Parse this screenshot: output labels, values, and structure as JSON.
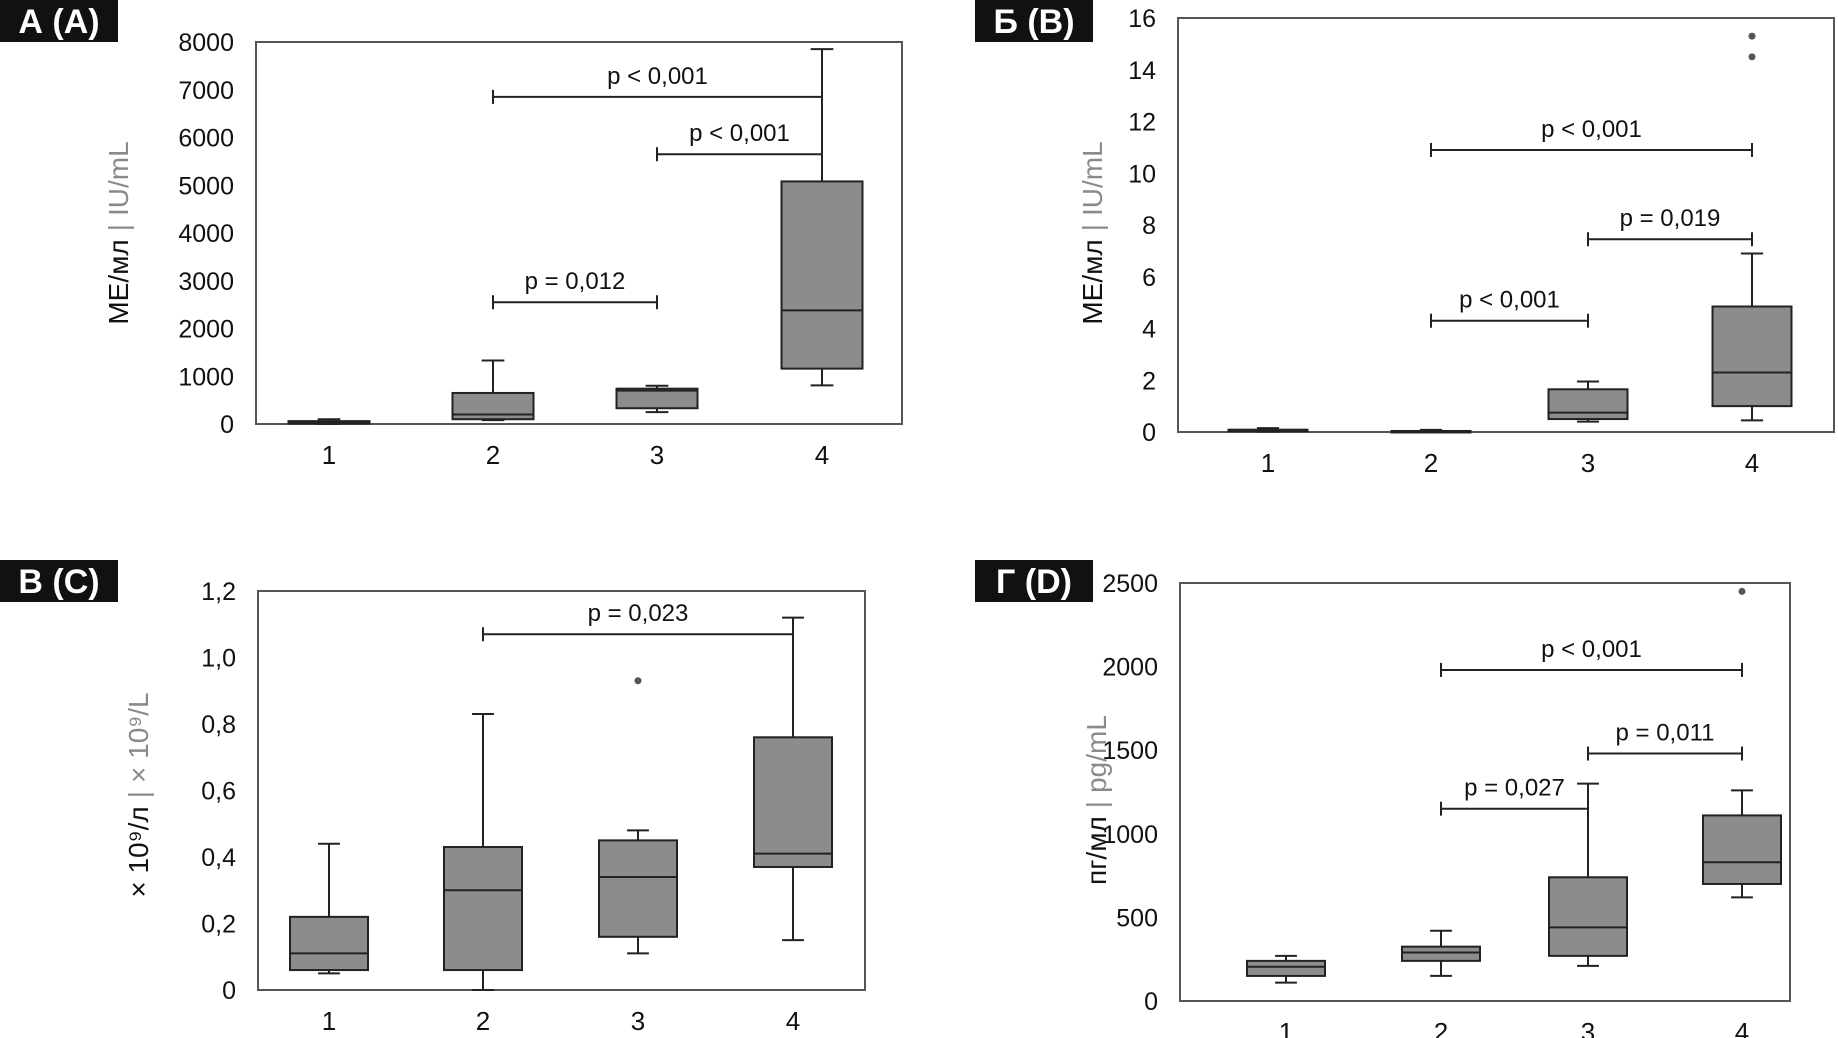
{
  "chart_data": [
    {
      "type": "box",
      "panel_label": "А (A)",
      "ylabel_ru": "МЕ/мл",
      "ylabel_sep": "|",
      "ylabel_en": "IU/mL",
      "ylim": [
        0,
        8000
      ],
      "yticks": [
        0,
        1000,
        2000,
        3000,
        4000,
        5000,
        6000,
        7000,
        8000
      ],
      "ytick_labels": [
        "0",
        "1000",
        "2000",
        "3000",
        "4000",
        "5000",
        "6000",
        "7000",
        "8000"
      ],
      "categories": [
        "1",
        "2",
        "3",
        "4"
      ],
      "boxes": [
        {
          "min": 0,
          "q1": 10,
          "median": 30,
          "q3": 60,
          "max": 100
        },
        {
          "min": 80,
          "q1": 100,
          "median": 200,
          "q3": 650,
          "max": 1330
        },
        {
          "min": 250,
          "q1": 330,
          "median": 700,
          "q3": 740,
          "max": 800
        },
        {
          "min": 810,
          "q1": 1160,
          "median": 2380,
          "q3": 5080,
          "max": 7850
        }
      ],
      "outliers": [
        [],
        [],
        [],
        []
      ],
      "comparisons": [
        {
          "from": "2",
          "to": "4",
          "y": 6850,
          "label": "p < 0,001"
        },
        {
          "from": "3",
          "to": "4",
          "y": 5650,
          "label": "p < 0,001"
        },
        {
          "from": "2",
          "to": "3",
          "y": 2550,
          "label": "p = 0,012"
        }
      ]
    },
    {
      "type": "box",
      "panel_label": "Б (B)",
      "ylabel_ru": "МЕ/мл",
      "ylabel_sep": "|",
      "ylabel_en": "IU/mL",
      "ylim": [
        0,
        16
      ],
      "yticks": [
        0,
        2,
        4,
        6,
        8,
        10,
        12,
        14,
        16
      ],
      "ytick_labels": [
        "0",
        "2",
        "4",
        "6",
        "8",
        "10",
        "12",
        "14",
        "16"
      ],
      "categories": [
        "1",
        "2",
        "3",
        "4"
      ],
      "boxes": [
        {
          "min": 0.02,
          "q1": 0.04,
          "median": 0.07,
          "q3": 0.09,
          "max": 0.15
        },
        {
          "min": 0.01,
          "q1": 0.02,
          "median": 0.03,
          "q3": 0.04,
          "max": 0.08
        },
        {
          "min": 0.4,
          "q1": 0.5,
          "median": 0.75,
          "q3": 1.65,
          "max": 1.95
        },
        {
          "min": 0.45,
          "q1": 1.0,
          "median": 2.3,
          "q3": 4.85,
          "max": 6.9
        }
      ],
      "outliers": [
        [],
        [],
        [],
        [
          14.5,
          15.3
        ]
      ],
      "comparisons": [
        {
          "from": "2",
          "to": "4",
          "y": 10.9,
          "label": "p < 0,001"
        },
        {
          "from": "3",
          "to": "4",
          "y": 7.45,
          "label": "p = 0,019"
        },
        {
          "from": "2",
          "to": "3",
          "y": 4.3,
          "label": "p < 0,001"
        }
      ]
    },
    {
      "type": "box",
      "panel_label": "В (C)",
      "ylabel_ru": "× 10⁹/л",
      "ylabel_sep": "|",
      "ylabel_en": "× 10⁹/L",
      "ylim": [
        0,
        1.2
      ],
      "yticks": [
        0,
        0.2,
        0.4,
        0.6,
        0.8,
        1.0,
        1.2
      ],
      "ytick_labels": [
        "0",
        "0,2",
        "0,4",
        "0,6",
        "0,8",
        "1,0",
        "1,2"
      ],
      "categories": [
        "1",
        "2",
        "3",
        "4"
      ],
      "boxes": [
        {
          "min": 0.05,
          "q1": 0.06,
          "median": 0.11,
          "q3": 0.22,
          "max": 0.44
        },
        {
          "min": 0.0,
          "q1": 0.06,
          "median": 0.3,
          "q3": 0.43,
          "max": 0.83
        },
        {
          "min": 0.11,
          "q1": 0.16,
          "median": 0.34,
          "q3": 0.45,
          "max": 0.48
        },
        {
          "min": 0.15,
          "q1": 0.37,
          "median": 0.41,
          "q3": 0.76,
          "max": 1.12
        }
      ],
      "outliers": [
        [],
        [],
        [
          0.93
        ],
        []
      ],
      "comparisons": [
        {
          "from": "2",
          "to": "4",
          "y": 1.07,
          "label": "p = 0,023"
        }
      ]
    },
    {
      "type": "box",
      "panel_label": "Г (D)",
      "ylabel_ru": "пг/мл",
      "ylabel_sep": "|",
      "ylabel_en": "pg/mL",
      "ylim": [
        0,
        2500
      ],
      "yticks": [
        0,
        500,
        1000,
        1500,
        2000,
        2500
      ],
      "ytick_labels": [
        "0",
        "500",
        "1000",
        "1500",
        "2000",
        "2500"
      ],
      "categories": [
        "1",
        "2",
        "3",
        "4"
      ],
      "boxes": [
        {
          "min": 110,
          "q1": 150,
          "median": 205,
          "q3": 240,
          "max": 270
        },
        {
          "min": 150,
          "q1": 240,
          "median": 290,
          "q3": 325,
          "max": 420
        },
        {
          "min": 210,
          "q1": 270,
          "median": 440,
          "q3": 740,
          "max": 1300
        },
        {
          "min": 620,
          "q1": 700,
          "median": 830,
          "q3": 1110,
          "max": 1260
        }
      ],
      "outliers": [
        [],
        [],
        [],
        [
          2450
        ]
      ],
      "comparisons": [
        {
          "from": "2",
          "to": "4",
          "y": 1980,
          "label": "p < 0,001"
        },
        {
          "from": "3",
          "to": "4",
          "y": 1480,
          "label": "p = 0,011"
        },
        {
          "from": "2",
          "to": "3",
          "y": 1150,
          "label": "p = 0,027"
        }
      ]
    }
  ]
}
